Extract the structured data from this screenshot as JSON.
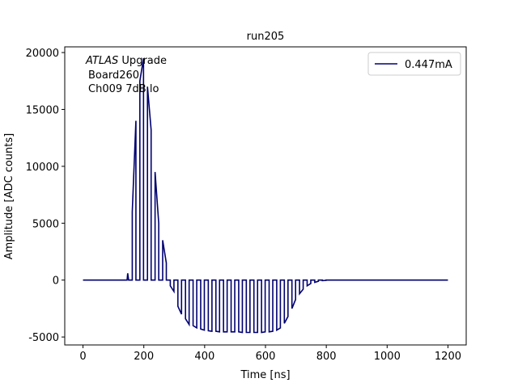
{
  "chart_data": {
    "type": "line",
    "title": "run205",
    "xlabel": "Time [ns]",
    "ylabel": "Amplitude [ADC counts]",
    "annotation": {
      "italic": "ATLAS",
      "rest": "Upgrade",
      "lines": [
        "Board260",
        "Ch009 7dB lo"
      ]
    },
    "legend": "upper right",
    "xlim": [
      -60,
      1260
    ],
    "xticks": [
      0,
      200,
      400,
      600,
      800,
      1000,
      1200
    ],
    "ylim": [
      -5700,
      20500
    ],
    "yticks": [
      -5000,
      0,
      5000,
      10000,
      15000,
      20000
    ],
    "series": [
      {
        "name": "0.447mA",
        "color": "#000070",
        "x": [
          0,
          140,
          145,
          147,
          150,
          162,
          162,
          174,
          174,
          187,
          187,
          199,
          199,
          212,
          212,
          224,
          224,
          237,
          237,
          249,
          249,
          262,
          262,
          274,
          274,
          287,
          287,
          299,
          299,
          312,
          312,
          324,
          324,
          337,
          337,
          349,
          349,
          362,
          362,
          374,
          374,
          387,
          387,
          399,
          399,
          412,
          412,
          424,
          424,
          437,
          437,
          449,
          449,
          462,
          462,
          474,
          474,
          487,
          487,
          499,
          499,
          512,
          512,
          524,
          524,
          537,
          537,
          549,
          549,
          562,
          562,
          574,
          574,
          587,
          587,
          599,
          599,
          612,
          612,
          624,
          624,
          637,
          637,
          649,
          649,
          662,
          662,
          674,
          674,
          687,
          687,
          699,
          699,
          712,
          712,
          724,
          724,
          737,
          737,
          749,
          749,
          762,
          762,
          774,
          774,
          787,
          787,
          799,
          799,
          1200
        ],
        "values": [
          0,
          0,
          0,
          600,
          0,
          0,
          6000,
          14000,
          0,
          0,
          17500,
          19500,
          0,
          0,
          17000,
          13200,
          0,
          0,
          9500,
          5000,
          0,
          0,
          3500,
          1500,
          0,
          0,
          -500,
          -1000,
          0,
          0,
          -2300,
          -3000,
          0,
          0,
          -3400,
          -3900,
          0,
          0,
          -4000,
          -4200,
          0,
          0,
          -4300,
          -4400,
          0,
          0,
          -4450,
          -4500,
          0,
          0,
          -4500,
          -4550,
          0,
          0,
          -4550,
          -4550,
          0,
          0,
          -4550,
          -4550,
          0,
          0,
          -4550,
          -4600,
          0,
          0,
          -4600,
          -4600,
          0,
          0,
          -4600,
          -4600,
          0,
          0,
          -4600,
          -4550,
          0,
          0,
          -4550,
          -4500,
          0,
          0,
          -4400,
          -4200,
          0,
          0,
          -3800,
          -3200,
          0,
          0,
          -2500,
          -1700,
          0,
          0,
          -1200,
          -800,
          0,
          0,
          -500,
          -300,
          0,
          0,
          -200,
          -100,
          0,
          0,
          -50,
          -20,
          0,
          0
        ]
      }
    ]
  }
}
